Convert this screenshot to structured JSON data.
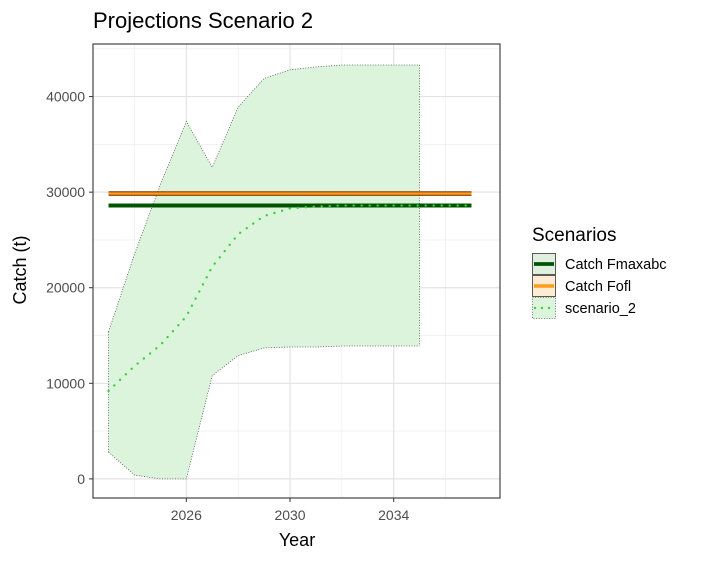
{
  "chart_data": {
    "type": "line",
    "title": "Projections Scenario 2",
    "xlabel": "Year",
    "ylabel": "Catch (t)",
    "xlim": [
      2022.4,
      2038.1
    ],
    "ylim": [
      -2000,
      45500
    ],
    "x_ticks": [
      2026,
      2030,
      2034
    ],
    "x_tick_labels": [
      "2026",
      "2030",
      "2034"
    ],
    "y_ticks": [
      0,
      10000,
      20000,
      30000,
      40000
    ],
    "y_tick_labels": [
      "0",
      "10000",
      "20000",
      "30000",
      "40000"
    ],
    "grid": true,
    "legend": {
      "title": "Scenarios",
      "position": "right",
      "entries": [
        "Catch Fmaxabc",
        "Catch Fofl",
        "scenario_2"
      ]
    },
    "series": [
      {
        "name": "Catch Fmaxabc",
        "style": "solid",
        "color": "#005400",
        "x": [
          2023,
          2037
        ],
        "values": [
          28600,
          28600
        ]
      },
      {
        "name": "Catch Fofl",
        "style": "solid",
        "color": "#ff9c1a",
        "x": [
          2023,
          2037
        ],
        "values": [
          29850,
          29850
        ]
      },
      {
        "name": "scenario_2",
        "style": "dotted",
        "color": "#39d139",
        "x": [
          2023,
          2024,
          2025,
          2026,
          2027,
          2028,
          2029,
          2030,
          2031,
          2032,
          2033,
          2034,
          2035,
          2036,
          2037
        ],
        "values": [
          9200,
          11800,
          14000,
          17000,
          22200,
          25600,
          27500,
          28300,
          28500,
          28600,
          28600,
          28600,
          28600,
          28600,
          28600
        ],
        "band": {
          "x": [
            2023,
            2024,
            2025,
            2026,
            2027,
            2028,
            2029,
            2030,
            2031,
            2032,
            2033,
            2034,
            2035
          ],
          "lower": [
            2800,
            400,
            0,
            0,
            10800,
            12900,
            13700,
            13800,
            13800,
            13900,
            13900,
            13900,
            13900
          ],
          "upper": [
            15400,
            23500,
            30800,
            37400,
            32600,
            38900,
            41900,
            42800,
            43100,
            43300,
            43300,
            43300,
            43300
          ],
          "fill": "#dcf3dc",
          "edge": "#555555"
        }
      }
    ]
  }
}
